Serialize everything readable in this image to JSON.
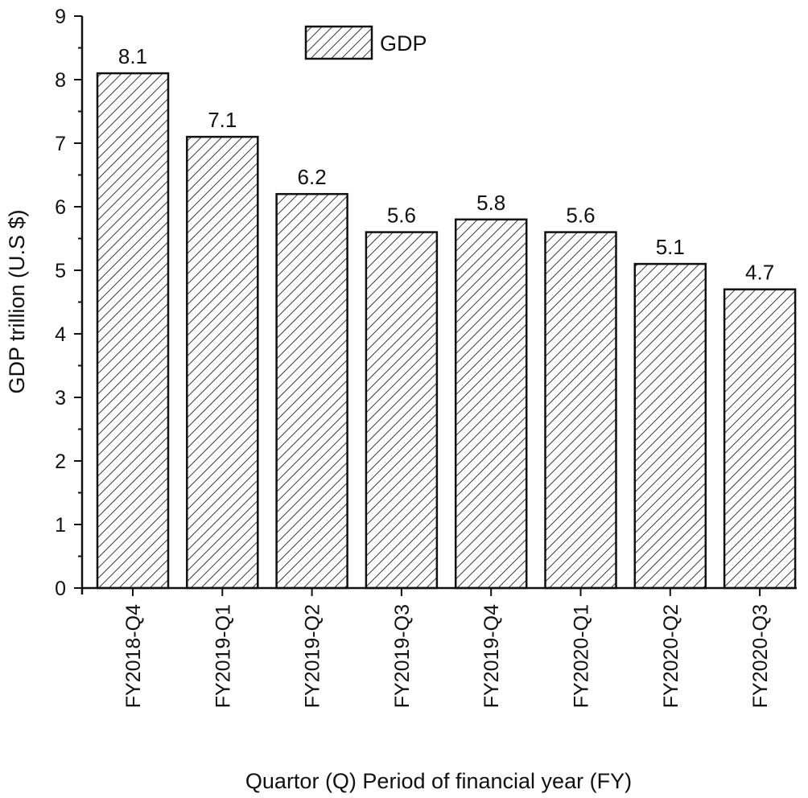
{
  "chart_data": {
    "type": "bar",
    "categories": [
      "FY2018-Q4",
      "FY2019-Q1",
      "FY2019-Q2",
      "FY2019-Q3",
      "FY2019-Q4",
      "FY2020-Q1",
      "FY2020-Q2",
      "FY2020-Q3"
    ],
    "series": [
      {
        "name": "GDP",
        "values": [
          8.1,
          7.1,
          6.2,
          5.6,
          5.8,
          5.6,
          5.1,
          4.7
        ]
      }
    ],
    "data_labels": [
      "8.1",
      "7.1",
      "6.2",
      "5.6",
      "5.8",
      "5.6",
      "5.1",
      "4.7"
    ],
    "xlabel": "Quartor (Q) Period of financial year (FY)",
    "ylabel": "GDP trillion (U.S $)",
    "ylim": [
      0,
      9
    ],
    "yticks": [
      0,
      1,
      2,
      3,
      4,
      5,
      6,
      7,
      8,
      9
    ],
    "legend": {
      "position": "top-center",
      "entries": [
        "GDP"
      ]
    },
    "grid": false,
    "bar_fill": "hatched",
    "colors": {
      "stroke": "#111111",
      "hatch": "#222222",
      "background": "#ffffff"
    }
  }
}
